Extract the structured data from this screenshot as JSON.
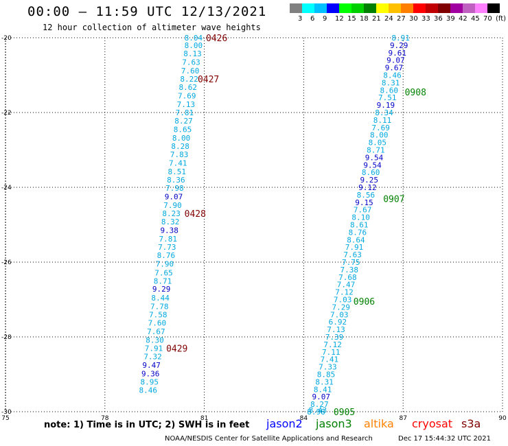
{
  "title": "00:00 – 11:59 UTC 12/13/2021",
  "subtitle": "12 hour collection of altimeter wave heights",
  "legend": {
    "colors": [
      "#808080",
      "#00ffff",
      "#00c0ff",
      "#0000ff",
      "#00ff00",
      "#00d000",
      "#008000",
      "#ffff00",
      "#ffc000",
      "#ff8000",
      "#ff0000",
      "#c00000",
      "#800000",
      "#a000a0",
      "#c060c0",
      "#ff80ff",
      "#000000"
    ],
    "labels": [
      "3",
      "6",
      "9",
      "12",
      "15",
      "18",
      "21",
      "24",
      "27",
      "30",
      "33",
      "36",
      "39",
      "42",
      "45",
      "70",
      "(ft)"
    ]
  },
  "axes": {
    "x_ticks": [
      "75",
      "78",
      "81",
      "84",
      "87",
      "90"
    ],
    "y_ticks": [
      "-20",
      "-22",
      "-24",
      "-26",
      "-28",
      "-30"
    ]
  },
  "tracks": [
    {
      "points": [
        {
          "lon": 80.95,
          "lat": -20.0,
          "v": "8.04",
          "c": "#00a8e0"
        },
        {
          "lon": 80.95,
          "lat": -20.2,
          "v": "8.00",
          "c": "#00a8e0"
        },
        {
          "lon": 80.92,
          "lat": -20.42,
          "v": "8.13",
          "c": "#00a8e0"
        },
        {
          "lon": 80.88,
          "lat": -20.65,
          "v": "7.63",
          "c": "#00a8e0"
        },
        {
          "lon": 80.85,
          "lat": -20.88,
          "v": "7.60",
          "c": "#00a8e0"
        },
        {
          "lon": 80.82,
          "lat": -21.1,
          "v": "8.22",
          "c": "#00a8e0"
        },
        {
          "lon": 80.78,
          "lat": -21.32,
          "v": "8.62",
          "c": "#00a8e0"
        },
        {
          "lon": 80.75,
          "lat": -21.55,
          "v": "7.69",
          "c": "#00a8e0"
        },
        {
          "lon": 80.72,
          "lat": -21.78,
          "v": "7.13",
          "c": "#00a8e0"
        },
        {
          "lon": 80.68,
          "lat": -22.0,
          "v": "7.81",
          "c": "#00a8e0"
        },
        {
          "lon": 80.65,
          "lat": -22.22,
          "v": "8.27",
          "c": "#00a8e0"
        },
        {
          "lon": 80.62,
          "lat": -22.45,
          "v": "8.65",
          "c": "#00a8e0"
        },
        {
          "lon": 80.58,
          "lat": -22.68,
          "v": "8.00",
          "c": "#00a8e0"
        },
        {
          "lon": 80.55,
          "lat": -22.9,
          "v": "8.28",
          "c": "#00a8e0"
        },
        {
          "lon": 80.52,
          "lat": -23.12,
          "v": "7.83",
          "c": "#00a8e0"
        },
        {
          "lon": 80.48,
          "lat": -23.35,
          "v": "7.41",
          "c": "#00a8e0"
        },
        {
          "lon": 80.45,
          "lat": -23.58,
          "v": "8.51",
          "c": "#00a8e0"
        },
        {
          "lon": 80.42,
          "lat": -23.8,
          "v": "8.36",
          "c": "#00a8e0"
        },
        {
          "lon": 80.38,
          "lat": -24.02,
          "v": "7.98",
          "c": "#00a8e0"
        },
        {
          "lon": 80.35,
          "lat": -24.25,
          "v": "9.07",
          "c": "#0000c8"
        },
        {
          "lon": 80.32,
          "lat": -24.48,
          "v": "7.90",
          "c": "#00a8e0"
        },
        {
          "lon": 80.28,
          "lat": -24.7,
          "v": "8.23",
          "c": "#00a8e0"
        },
        {
          "lon": 80.25,
          "lat": -24.92,
          "v": "8.32",
          "c": "#00a8e0"
        },
        {
          "lon": 80.22,
          "lat": -25.15,
          "v": "9.38",
          "c": "#0000c8"
        },
        {
          "lon": 80.18,
          "lat": -25.38,
          "v": "7.81",
          "c": "#00a8e0"
        },
        {
          "lon": 80.15,
          "lat": -25.6,
          "v": "7.73",
          "c": "#00a8e0"
        },
        {
          "lon": 80.12,
          "lat": -25.82,
          "v": "8.76",
          "c": "#00a8e0"
        },
        {
          "lon": 80.08,
          "lat": -26.05,
          "v": "7.90",
          "c": "#00a8e0"
        },
        {
          "lon": 80.05,
          "lat": -26.28,
          "v": "7.65",
          "c": "#00a8e0"
        },
        {
          "lon": 80.02,
          "lat": -26.5,
          "v": "8.71",
          "c": "#00a8e0"
        },
        {
          "lon": 79.98,
          "lat": -26.72,
          "v": "9.29",
          "c": "#0000c8"
        },
        {
          "lon": 79.95,
          "lat": -26.95,
          "v": "8.44",
          "c": "#00a8e0"
        },
        {
          "lon": 79.92,
          "lat": -27.18,
          "v": "7.78",
          "c": "#00a8e0"
        },
        {
          "lon": 79.88,
          "lat": -27.4,
          "v": "7.58",
          "c": "#00a8e0"
        },
        {
          "lon": 79.85,
          "lat": -27.62,
          "v": "7.60",
          "c": "#00a8e0"
        },
        {
          "lon": 79.82,
          "lat": -27.85,
          "v": "7.67",
          "c": "#00a8e0"
        },
        {
          "lon": 79.78,
          "lat": -28.08,
          "v": "8.30",
          "c": "#00a8e0"
        },
        {
          "lon": 79.75,
          "lat": -28.3,
          "v": "7.91",
          "c": "#00a8e0"
        },
        {
          "lon": 79.72,
          "lat": -28.52,
          "v": "7.32",
          "c": "#00a8e0"
        },
        {
          "lon": 79.68,
          "lat": -28.75,
          "v": "9.47",
          "c": "#0000c8"
        },
        {
          "lon": 79.65,
          "lat": -28.98,
          "v": "9.36",
          "c": "#0000c8"
        },
        {
          "lon": 79.62,
          "lat": -29.2,
          "v": "8.95",
          "c": "#00a8e0"
        },
        {
          "lon": 79.58,
          "lat": -29.42,
          "v": "8.46",
          "c": "#00a8e0"
        }
      ]
    },
    {
      "points": [
        {
          "lon": 87.2,
          "lat": -20.0,
          "v": "8.91",
          "c": "#00a8e0"
        },
        {
          "lon": 87.15,
          "lat": -20.2,
          "v": "9.29",
          "c": "#0000c8"
        },
        {
          "lon": 87.1,
          "lat": -20.4,
          "v": "9.61",
          "c": "#0000c8"
        },
        {
          "lon": 87.05,
          "lat": -20.6,
          "v": "9.07",
          "c": "#0000c8"
        },
        {
          "lon": 87.0,
          "lat": -20.8,
          "v": "9.67",
          "c": "#0000c8"
        },
        {
          "lon": 86.95,
          "lat": -21.0,
          "v": "8.46",
          "c": "#00a8e0"
        },
        {
          "lon": 86.9,
          "lat": -21.2,
          "v": "8.31",
          "c": "#00a8e0"
        },
        {
          "lon": 86.85,
          "lat": -21.4,
          "v": "8.60",
          "c": "#00a8e0"
        },
        {
          "lon": 86.8,
          "lat": -21.6,
          "v": "7.51",
          "c": "#00a8e0"
        },
        {
          "lon": 86.75,
          "lat": -21.8,
          "v": "9.19",
          "c": "#0000c8"
        },
        {
          "lon": 86.7,
          "lat": -22.0,
          "v": "8.34",
          "c": "#00a8e0"
        },
        {
          "lon": 86.65,
          "lat": -22.2,
          "v": "8.11",
          "c": "#00a8e0"
        },
        {
          "lon": 86.6,
          "lat": -22.4,
          "v": "7.69",
          "c": "#00a8e0"
        },
        {
          "lon": 86.55,
          "lat": -22.6,
          "v": "8.00",
          "c": "#00a8e0"
        },
        {
          "lon": 86.5,
          "lat": -22.8,
          "v": "8.05",
          "c": "#00a8e0"
        },
        {
          "lon": 86.45,
          "lat": -23.0,
          "v": "8.71",
          "c": "#00a8e0"
        },
        {
          "lon": 86.4,
          "lat": -23.2,
          "v": "9.54",
          "c": "#0000c8"
        },
        {
          "lon": 86.35,
          "lat": -23.4,
          "v": "9.54",
          "c": "#0000c8"
        },
        {
          "lon": 86.3,
          "lat": -23.6,
          "v": "8.60",
          "c": "#00a8e0"
        },
        {
          "lon": 86.25,
          "lat": -23.8,
          "v": "9.25",
          "c": "#0000c8"
        },
        {
          "lon": 86.2,
          "lat": -24.0,
          "v": "9.12",
          "c": "#0000c8"
        },
        {
          "lon": 86.15,
          "lat": -24.2,
          "v": "8.56",
          "c": "#00a8e0"
        },
        {
          "lon": 86.1,
          "lat": -24.4,
          "v": "9.15",
          "c": "#0000c8"
        },
        {
          "lon": 86.05,
          "lat": -24.6,
          "v": "7.67",
          "c": "#00a8e0"
        },
        {
          "lon": 86.0,
          "lat": -24.8,
          "v": "8.10",
          "c": "#00a8e0"
        },
        {
          "lon": 85.95,
          "lat": -25.0,
          "v": "8.61",
          "c": "#00a8e0"
        },
        {
          "lon": 85.9,
          "lat": -25.2,
          "v": "8.76",
          "c": "#00a8e0"
        },
        {
          "lon": 85.85,
          "lat": -25.4,
          "v": "8.64",
          "c": "#00a8e0"
        },
        {
          "lon": 85.8,
          "lat": -25.6,
          "v": "7.91",
          "c": "#00a8e0"
        },
        {
          "lon": 85.75,
          "lat": -25.8,
          "v": "7.63",
          "c": "#00a8e0"
        },
        {
          "lon": 85.7,
          "lat": -26.0,
          "v": "7.75",
          "c": "#00a8e0"
        },
        {
          "lon": 85.65,
          "lat": -26.2,
          "v": "7.38",
          "c": "#00a8e0"
        },
        {
          "lon": 85.6,
          "lat": -26.4,
          "v": "7.68",
          "c": "#00a8e0"
        },
        {
          "lon": 85.55,
          "lat": -26.6,
          "v": "7.47",
          "c": "#00a8e0"
        },
        {
          "lon": 85.5,
          "lat": -26.8,
          "v": "7.12",
          "c": "#00a8e0"
        },
        {
          "lon": 85.45,
          "lat": -27.0,
          "v": "7.03",
          "c": "#00a8e0"
        },
        {
          "lon": 85.4,
          "lat": -27.2,
          "v": "7.29",
          "c": "#00a8e0"
        },
        {
          "lon": 85.35,
          "lat": -27.4,
          "v": "7.03",
          "c": "#00a8e0"
        },
        {
          "lon": 85.3,
          "lat": -27.6,
          "v": "6.92",
          "c": "#00a8e0"
        },
        {
          "lon": 85.25,
          "lat": -27.8,
          "v": "7.13",
          "c": "#00a8e0"
        },
        {
          "lon": 85.2,
          "lat": -28.0,
          "v": "7.39",
          "c": "#00a8e0"
        },
        {
          "lon": 85.15,
          "lat": -28.2,
          "v": "7.12",
          "c": "#00a8e0"
        },
        {
          "lon": 85.1,
          "lat": -28.4,
          "v": "7.11",
          "c": "#00a8e0"
        },
        {
          "lon": 85.05,
          "lat": -28.6,
          "v": "7.41",
          "c": "#00a8e0"
        },
        {
          "lon": 85.0,
          "lat": -28.8,
          "v": "7.33",
          "c": "#00a8e0"
        },
        {
          "lon": 84.95,
          "lat": -29.0,
          "v": "8.85",
          "c": "#00a8e0"
        },
        {
          "lon": 84.9,
          "lat": -29.2,
          "v": "8.31",
          "c": "#00a8e0"
        },
        {
          "lon": 84.85,
          "lat": -29.4,
          "v": "8.41",
          "c": "#00a8e0"
        },
        {
          "lon": 84.8,
          "lat": -29.6,
          "v": "9.07",
          "c": "#0000c8"
        },
        {
          "lon": 84.75,
          "lat": -29.8,
          "v": "8.27",
          "c": "#00a8e0"
        },
        {
          "lon": 84.7,
          "lat": -29.95,
          "v": "8.43",
          "c": "#00a8e0"
        },
        {
          "lon": 84.65,
          "lat": -30.0,
          "v": "8.98",
          "c": "#00a8e0"
        }
      ]
    }
  ],
  "time_labels": [
    {
      "text": "0426",
      "lon": 81.05,
      "lat": -20.0,
      "c": "#800000"
    },
    {
      "text": "0427",
      "lon": 80.8,
      "lat": -21.1,
      "c": "#800000"
    },
    {
      "text": "0428",
      "lon": 80.4,
      "lat": -24.7,
      "c": "#800000"
    },
    {
      "text": "0429",
      "lon": 79.85,
      "lat": -28.3,
      "c": "#800000"
    },
    {
      "text": "0908",
      "lon": 87.05,
      "lat": -21.45,
      "c": "#008000"
    },
    {
      "text": "0907",
      "lon": 86.4,
      "lat": -24.3,
      "c": "#008000"
    },
    {
      "text": "0906",
      "lon": 85.5,
      "lat": -27.05,
      "c": "#008000"
    },
    {
      "text": "0905",
      "lon": 84.9,
      "lat": -30.0,
      "c": "#008000"
    }
  ],
  "note": "note:  1) Time is in UTC;  2) SWH is in feet",
  "satellites": [
    {
      "name": "jason2",
      "color": "#0000ff"
    },
    {
      "name": "jason3",
      "color": "#008000"
    },
    {
      "name": "altika",
      "color": "#ff8000"
    },
    {
      "name": "cryosat",
      "color": "#ff0000"
    },
    {
      "name": "s3a",
      "color": "#800000"
    }
  ],
  "credit": "NOAA/NESDIS Center for Satellite Applications and Research",
  "timestamp": "Dec 17 15:44:32 UTC 2021"
}
